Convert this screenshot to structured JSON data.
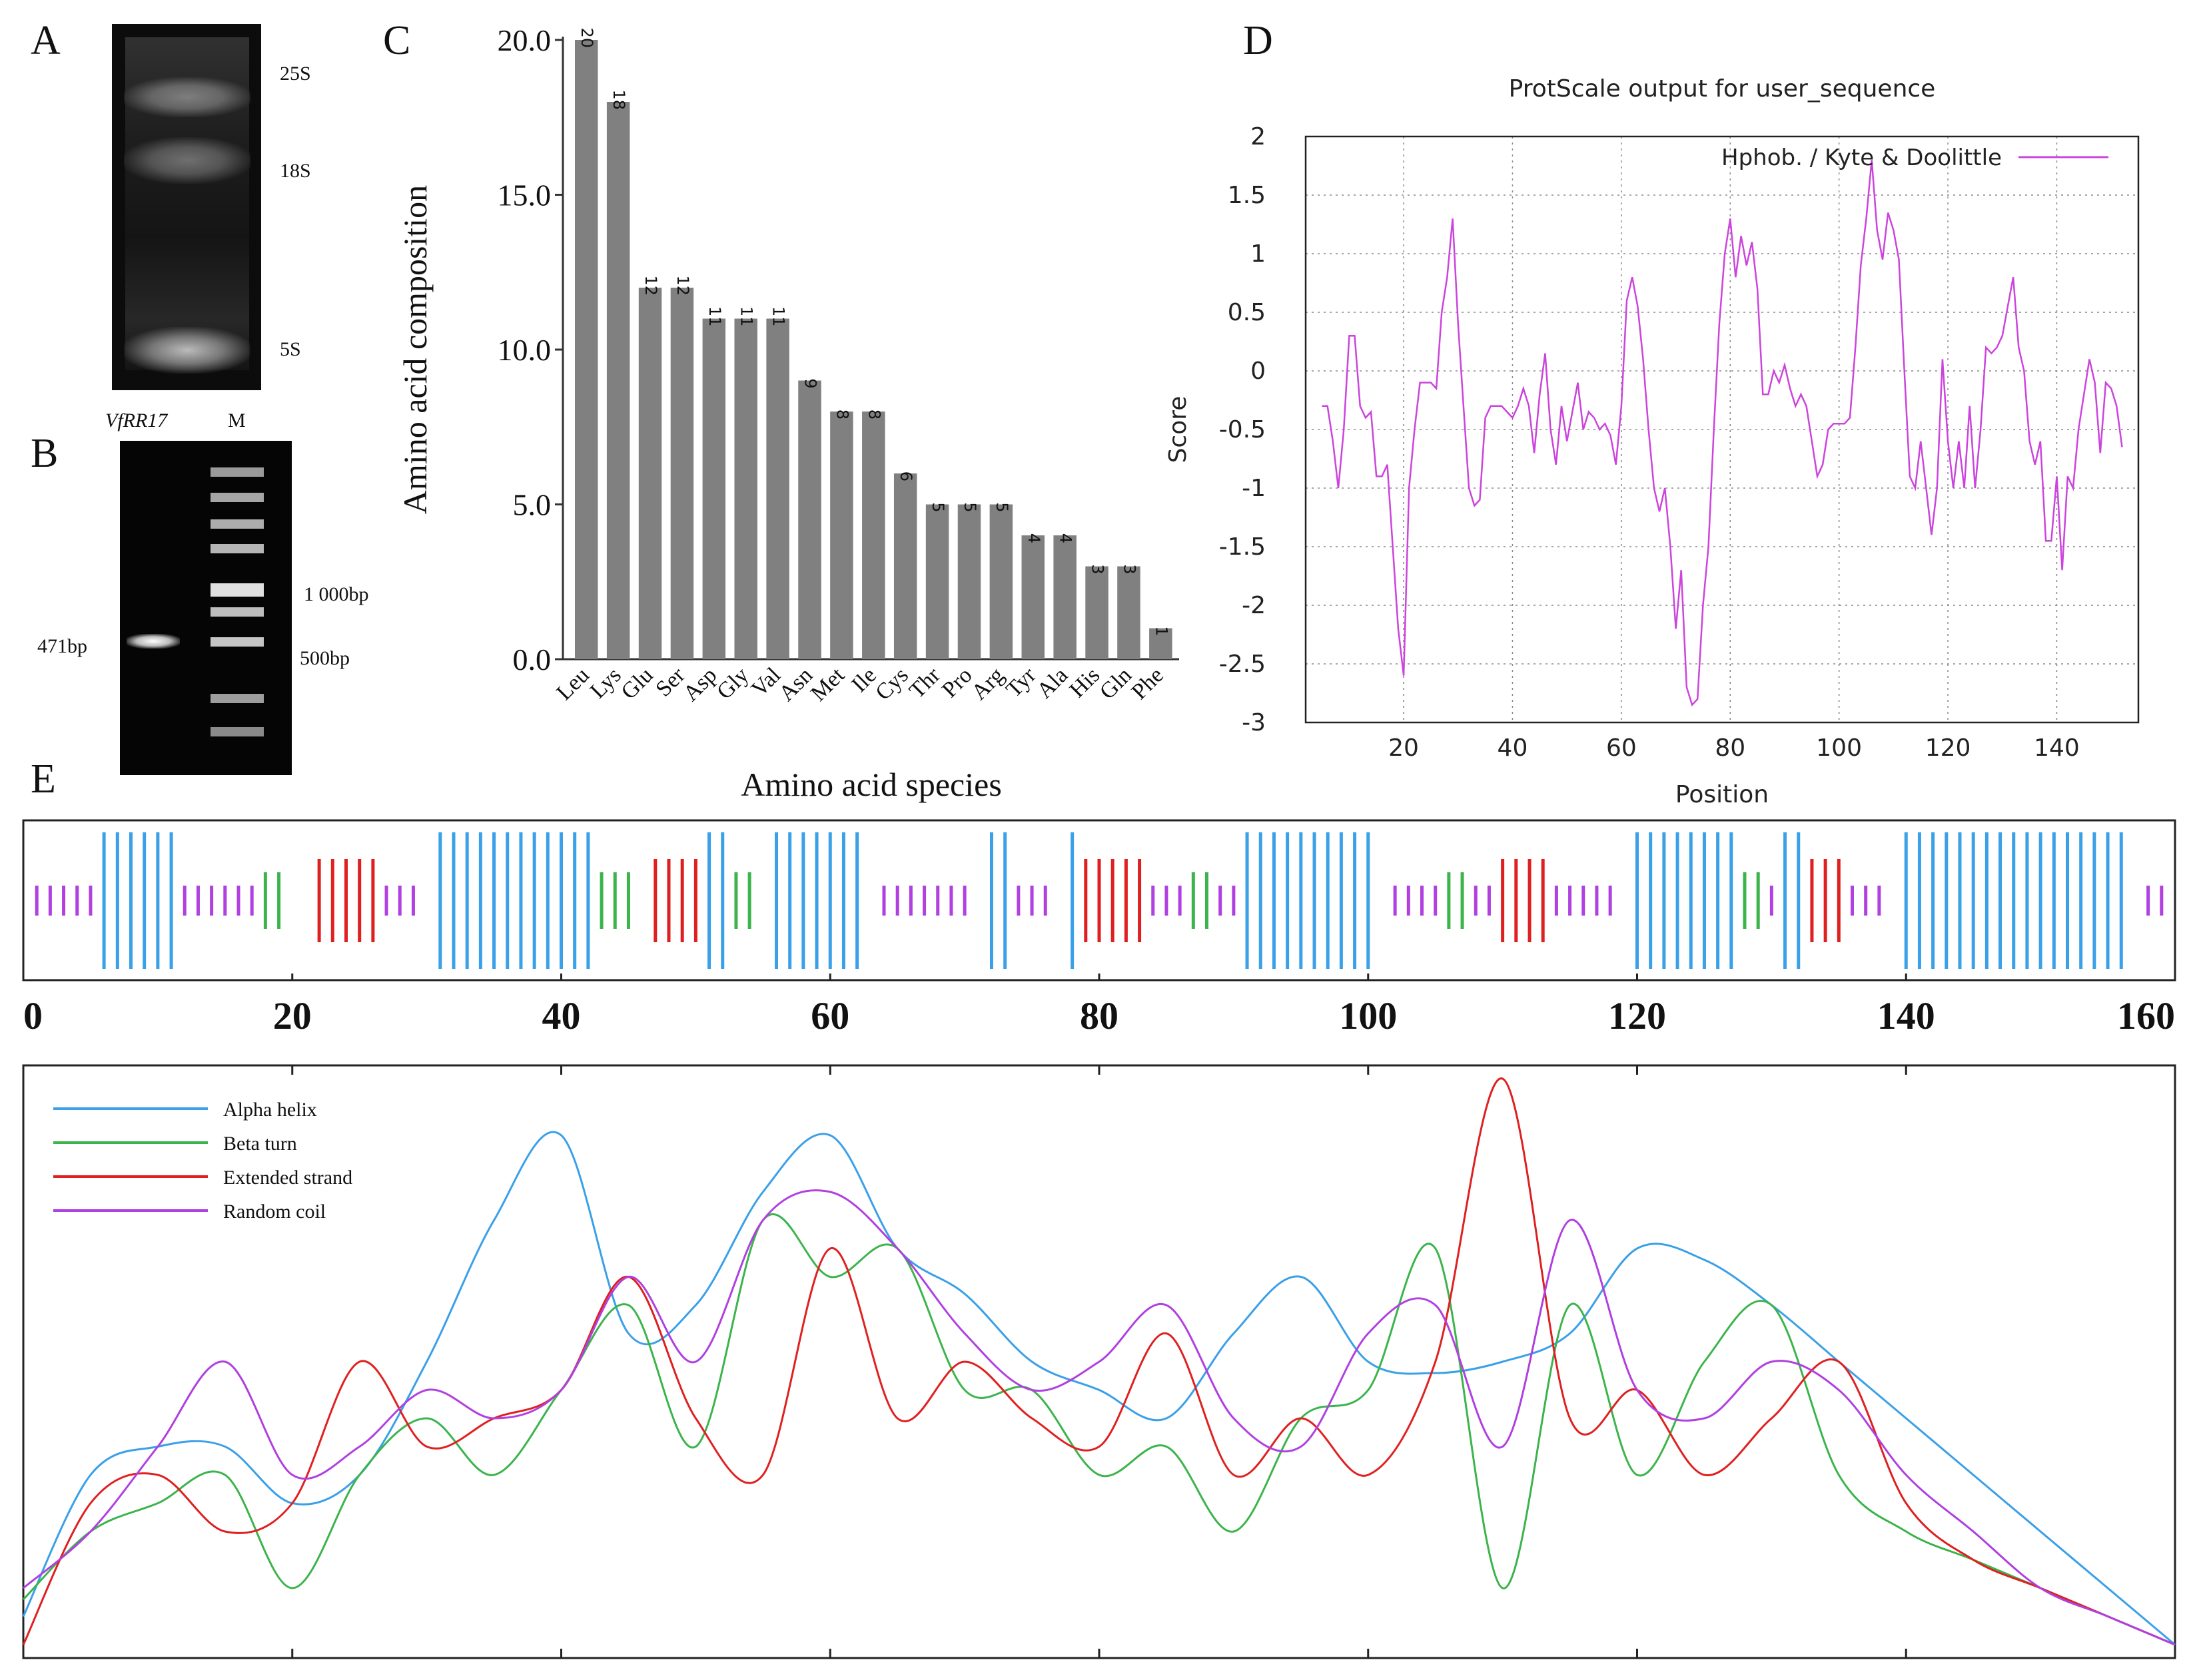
{
  "panels": {
    "a": {
      "letter": "A",
      "bands": [
        "25S",
        "18S",
        "5S"
      ]
    },
    "b": {
      "letter": "B",
      "sample_label": "VfRR17",
      "marker_label": "M",
      "left_band": "471bp",
      "ladder_labels": [
        "1 000bp",
        "500bp"
      ]
    },
    "c": {
      "letter": "C"
    },
    "d": {
      "letter": "D"
    },
    "e": {
      "letter": "E"
    }
  },
  "chart_data": [
    {
      "id": "C",
      "type": "bar",
      "title": "",
      "xlabel": "Amino acid species",
      "ylabel": "Amino acid composition",
      "ylim": [
        0,
        20
      ],
      "yticks": [
        "0.0",
        "5.0",
        "10.0",
        "15.0",
        "20.0"
      ],
      "categories": [
        "Leu",
        "Lys",
        "Glu",
        "Ser",
        "Asp",
        "Gly",
        "Val",
        "Asn",
        "Met",
        "Ile",
        "Cys",
        "Thr",
        "Pro",
        "Arg",
        "Tyr",
        "Ala",
        "His",
        "Gln",
        "Phe"
      ],
      "values": [
        20,
        18,
        12,
        12,
        11,
        11,
        11,
        9,
        8,
        8,
        6,
        5,
        5,
        5,
        4,
        4,
        3,
        3,
        1
      ],
      "bar_color": "#808080"
    },
    {
      "id": "D",
      "type": "line",
      "title": "ProtScale output for user_sequence",
      "xlabel": "Position",
      "ylabel": "Score",
      "xlim": [
        2,
        155
      ],
      "ylim": [
        -3,
        2
      ],
      "xticks": [
        20,
        40,
        60,
        80,
        100,
        120,
        140
      ],
      "yticks": [
        2,
        1.5,
        1,
        0.5,
        0,
        -0.5,
        -1,
        -1.5,
        -2,
        -2.5,
        -3
      ],
      "legend": "Hphob. / Kyte & Doolittle",
      "color": "#cc44dd",
      "x": [
        5,
        6,
        7,
        8,
        9,
        10,
        11,
        12,
        13,
        14,
        15,
        16,
        17,
        18,
        19,
        20,
        21,
        22,
        23,
        24,
        25,
        26,
        27,
        28,
        29,
        30,
        31,
        32,
        33,
        34,
        35,
        36,
        37,
        38,
        39,
        40,
        41,
        42,
        43,
        44,
        45,
        46,
        47,
        48,
        49,
        50,
        51,
        52,
        53,
        54,
        55,
        56,
        57,
        58,
        59,
        60,
        61,
        62,
        63,
        64,
        65,
        66,
        67,
        68,
        69,
        70,
        71,
        72,
        73,
        74,
        75,
        76,
        77,
        78,
        79,
        80,
        81,
        82,
        83,
        84,
        85,
        86,
        87,
        88,
        89,
        90,
        91,
        92,
        93,
        94,
        95,
        96,
        97,
        98,
        99,
        100,
        101,
        102,
        103,
        104,
        105,
        106,
        107,
        108,
        109,
        110,
        111,
        112,
        113,
        114,
        115,
        116,
        117,
        118,
        119,
        120,
        121,
        122,
        123,
        124,
        125,
        126,
        127,
        128,
        129,
        130,
        131,
        132,
        133,
        134,
        135,
        136,
        137,
        138,
        139,
        140,
        141,
        142,
        143,
        144,
        145,
        146,
        147,
        148,
        149,
        150,
        151,
        152
      ],
      "y": [
        -0.3,
        -0.3,
        -0.6,
        -1.0,
        -0.5,
        0.3,
        0.3,
        -0.3,
        -0.4,
        -0.35,
        -0.9,
        -0.9,
        -0.8,
        -1.5,
        -2.2,
        -2.6,
        -1.0,
        -0.5,
        -0.1,
        -0.1,
        -0.1,
        -0.15,
        0.5,
        0.8,
        1.3,
        0.4,
        -0.3,
        -1.0,
        -1.15,
        -1.1,
        -0.4,
        -0.3,
        -0.3,
        -0.3,
        -0.35,
        -0.4,
        -0.3,
        -0.15,
        -0.3,
        -0.7,
        -0.2,
        0.15,
        -0.5,
        -0.8,
        -0.3,
        -0.6,
        -0.35,
        -0.1,
        -0.5,
        -0.35,
        -0.4,
        -0.5,
        -0.45,
        -0.55,
        -0.8,
        -0.3,
        0.6,
        0.8,
        0.55,
        0.1,
        -0.5,
        -1.0,
        -1.2,
        -1.0,
        -1.5,
        -2.2,
        -1.7,
        -2.7,
        -2.85,
        -2.8,
        -2.0,
        -1.5,
        -0.5,
        0.4,
        1.0,
        1.3,
        0.8,
        1.15,
        0.9,
        1.1,
        0.7,
        -0.2,
        -0.2,
        0.0,
        -0.1,
        0.05,
        -0.15,
        -0.3,
        -0.2,
        -0.3,
        -0.6,
        -0.9,
        -0.8,
        -0.5,
        -0.45,
        -0.45,
        -0.45,
        -0.4,
        0.2,
        0.9,
        1.3,
        1.8,
        1.2,
        0.95,
        1.35,
        1.2,
        0.95,
        0.0,
        -0.9,
        -1.0,
        -0.6,
        -1.0,
        -1.4,
        -1.0,
        0.1,
        -0.6,
        -1.0,
        -0.6,
        -1.0,
        -0.3,
        -1.0,
        -0.5,
        0.2,
        0.15,
        0.2,
        0.3,
        0.55,
        0.8,
        0.2,
        0.0,
        -0.6,
        -0.8,
        -0.6,
        -1.45,
        -1.45,
        -0.9,
        -1.7,
        -0.9,
        -1.0,
        -0.5,
        -0.2,
        0.1,
        -0.1,
        -0.7,
        -0.1,
        -0.15,
        -0.3,
        -0.65
      ]
    },
    {
      "id": "E",
      "type": "area",
      "title": "",
      "xlim": [
        0,
        160
      ],
      "xticks": [
        0,
        20,
        40,
        60,
        80,
        100,
        120,
        140,
        160
      ],
      "legend": [
        "Alpha helix",
        "Beta turn",
        "Extended strand",
        "Random coil"
      ],
      "colors": {
        "h": "#3aa0e8",
        "t": "#3cb44b",
        "e": "#e02020",
        "c": "#b040e0"
      },
      "segments": [
        {
          "type": "c",
          "start": 1,
          "end": 5
        },
        {
          "type": "h",
          "start": 6,
          "end": 11
        },
        {
          "type": "c",
          "start": 12,
          "end": 17
        },
        {
          "type": "t",
          "start": 18,
          "end": 19
        },
        {
          "type": "e",
          "start": 22,
          "end": 26
        },
        {
          "type": "c",
          "start": 27,
          "end": 29
        },
        {
          "type": "h",
          "start": 31,
          "end": 42
        },
        {
          "type": "t",
          "start": 43,
          "end": 45
        },
        {
          "type": "e",
          "start": 47,
          "end": 50
        },
        {
          "type": "h",
          "start": 51,
          "end": 52
        },
        {
          "type": "t",
          "start": 53,
          "end": 54
        },
        {
          "type": "h",
          "start": 56,
          "end": 62
        },
        {
          "type": "c",
          "start": 64,
          "end": 70
        },
        {
          "type": "h",
          "start": 72,
          "end": 73
        },
        {
          "type": "c",
          "start": 74,
          "end": 76
        },
        {
          "type": "h",
          "start": 78,
          "end": 78
        },
        {
          "type": "e",
          "start": 79,
          "end": 83
        },
        {
          "type": "c",
          "start": 84,
          "end": 86
        },
        {
          "type": "t",
          "start": 87,
          "end": 88
        },
        {
          "type": "c",
          "start": 89,
          "end": 90
        },
        {
          "type": "h",
          "start": 91,
          "end": 100
        },
        {
          "type": "c",
          "start": 102,
          "end": 105
        },
        {
          "type": "t",
          "start": 106,
          "end": 107
        },
        {
          "type": "c",
          "start": 108,
          "end": 109
        },
        {
          "type": "e",
          "start": 110,
          "end": 113
        },
        {
          "type": "c",
          "start": 114,
          "end": 118
        },
        {
          "type": "h",
          "start": 120,
          "end": 127
        },
        {
          "type": "t",
          "start": 128,
          "end": 129
        },
        {
          "type": "c",
          "start": 130,
          "end": 130
        },
        {
          "type": "h",
          "start": 131,
          "end": 132
        },
        {
          "type": "e",
          "start": 133,
          "end": 135
        },
        {
          "type": "c",
          "start": 136,
          "end": 138
        },
        {
          "type": "h",
          "start": 140,
          "end": 156
        },
        {
          "type": "c",
          "start": 158,
          "end": 159
        }
      ],
      "profile_x": [
        0,
        5,
        10,
        15,
        20,
        25,
        30,
        35,
        40,
        45,
        50,
        55,
        60,
        65,
        70,
        75,
        80,
        85,
        90,
        95,
        100,
        105,
        110,
        115,
        120,
        125,
        130,
        135,
        140,
        145,
        150,
        155,
        160
      ],
      "profile_series": [
        {
          "name": "Alpha helix",
          "key": "h",
          "values": [
            0.05,
            0.3,
            0.35,
            0.35,
            0.25,
            0.3,
            0.5,
            0.75,
            0.9,
            0.55,
            0.6,
            0.8,
            0.9,
            0.7,
            0.62,
            0.5,
            0.45,
            0.4,
            0.55,
            0.65,
            0.5,
            0.48,
            0.5,
            0.55,
            0.7,
            0.68,
            0.6,
            0.5,
            0.4,
            0.3,
            0.2,
            0.1,
            0.0
          ]
        },
        {
          "name": "Beta turn",
          "key": "t",
          "values": [
            0.08,
            0.2,
            0.25,
            0.3,
            0.1,
            0.3,
            0.4,
            0.3,
            0.45,
            0.6,
            0.35,
            0.75,
            0.65,
            0.7,
            0.45,
            0.45,
            0.3,
            0.35,
            0.2,
            0.4,
            0.45,
            0.7,
            0.1,
            0.6,
            0.3,
            0.5,
            0.6,
            0.3,
            0.2,
            0.15,
            0.1,
            0.05,
            0.0
          ]
        },
        {
          "name": "Extended strand",
          "key": "e",
          "values": [
            0.0,
            0.25,
            0.3,
            0.2,
            0.25,
            0.5,
            0.35,
            0.4,
            0.45,
            0.65,
            0.4,
            0.3,
            0.7,
            0.4,
            0.5,
            0.4,
            0.35,
            0.55,
            0.3,
            0.4,
            0.3,
            0.5,
            1.0,
            0.4,
            0.45,
            0.3,
            0.4,
            0.5,
            0.25,
            0.15,
            0.1,
            0.05,
            0.0
          ]
        },
        {
          "name": "Random coil",
          "key": "c",
          "values": [
            0.1,
            0.2,
            0.35,
            0.5,
            0.3,
            0.35,
            0.45,
            0.4,
            0.45,
            0.65,
            0.5,
            0.75,
            0.8,
            0.7,
            0.55,
            0.45,
            0.5,
            0.6,
            0.4,
            0.35,
            0.55,
            0.6,
            0.35,
            0.75,
            0.45,
            0.4,
            0.5,
            0.45,
            0.3,
            0.2,
            0.1,
            0.05,
            0.0
          ]
        }
      ]
    }
  ]
}
